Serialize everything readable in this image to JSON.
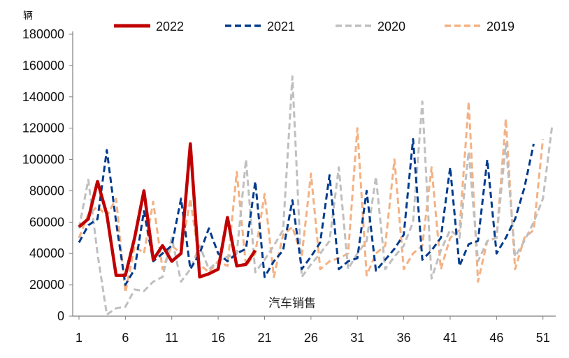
{
  "chart_data": {
    "type": "line",
    "title": "",
    "ylabel": "辆",
    "xlabel": "",
    "annotation": "汽车销售",
    "ylim": [
      0,
      180000
    ],
    "xlim": [
      1,
      52
    ],
    "yticks": [
      0,
      20000,
      40000,
      60000,
      80000,
      100000,
      120000,
      140000,
      160000,
      180000
    ],
    "xticks": [
      1,
      6,
      11,
      16,
      21,
      26,
      31,
      36,
      41,
      46,
      51
    ],
    "legend_position": "top",
    "series": [
      {
        "name": "2022",
        "color": "#c00000",
        "style": "solid",
        "x": [
          1,
          2,
          3,
          4,
          5,
          6,
          7,
          8,
          9,
          10,
          11,
          12,
          13,
          14,
          15,
          16,
          17,
          18,
          19,
          20
        ],
        "values": [
          57000,
          62000,
          86000,
          65000,
          26000,
          26000,
          50000,
          80000,
          36000,
          45000,
          35000,
          40000,
          110000,
          25000,
          27000,
          30000,
          63000,
          32000,
          33000,
          42000
        ]
      },
      {
        "name": "2021",
        "color": "#003b8e",
        "style": "dashed",
        "x": [
          1,
          2,
          3,
          4,
          5,
          6,
          7,
          8,
          9,
          10,
          11,
          12,
          13,
          14,
          15,
          16,
          17,
          18,
          19,
          20,
          21,
          22,
          23,
          24,
          25,
          26,
          27,
          28,
          29,
          30,
          31,
          32,
          33,
          34,
          35,
          36,
          37,
          38,
          39,
          40,
          41,
          42,
          43,
          44,
          45,
          46,
          47,
          48,
          49,
          50
        ],
        "values": [
          47000,
          58000,
          62000,
          106000,
          60000,
          20000,
          30000,
          67000,
          35000,
          40000,
          45000,
          75000,
          30000,
          40000,
          56000,
          40000,
          35000,
          40000,
          43000,
          86000,
          25000,
          35000,
          42000,
          74000,
          30000,
          38000,
          47000,
          90000,
          30000,
          35000,
          37000,
          80000,
          29000,
          36000,
          43000,
          52000,
          113000,
          36000,
          42000,
          50000,
          95000,
          32000,
          46000,
          48000,
          100000,
          40000,
          50000,
          62000,
          82000,
          110000
        ]
      },
      {
        "name": "2020",
        "color": "#bfbfbf",
        "style": "dashed",
        "x": [
          1,
          2,
          3,
          4,
          5,
          6,
          7,
          8,
          9,
          10,
          11,
          12,
          13,
          14,
          15,
          16,
          17,
          18,
          19,
          20,
          21,
          22,
          23,
          24,
          25,
          26,
          27,
          28,
          29,
          30,
          31,
          32,
          33,
          34,
          35,
          36,
          37,
          38,
          39,
          40,
          41,
          42,
          43,
          44,
          45,
          46,
          47,
          48,
          49,
          50,
          51,
          52
        ],
        "values": [
          56000,
          87000,
          40000,
          1000,
          5000,
          6000,
          17000,
          16000,
          22000,
          25000,
          50000,
          22000,
          30000,
          45000,
          30000,
          35000,
          38000,
          40000,
          100000,
          28000,
          36000,
          45000,
          55000,
          153000,
          25000,
          33000,
          40000,
          48000,
          95000,
          30000,
          40000,
          48000,
          89000,
          30000,
          38000,
          45000,
          60000,
          137000,
          24000,
          42000,
          55000,
          50000,
          105000,
          35000,
          48000,
          50000,
          110000,
          38000,
          48000,
          60000,
          75000,
          122000
        ]
      },
      {
        "name": "2019",
        "color": "#f4b183",
        "style": "dashed",
        "x": [
          1,
          2,
          3,
          4,
          5,
          6,
          7,
          8,
          9,
          10,
          11,
          12,
          13,
          14,
          15,
          16,
          17,
          18,
          19,
          20,
          21,
          22,
          23,
          24,
          25,
          26,
          27,
          28,
          29,
          30,
          31,
          32,
          33,
          34,
          35,
          36,
          37,
          38,
          39,
          40,
          41,
          42,
          43,
          44,
          45,
          46,
          47,
          48,
          49,
          50,
          51
        ],
        "values": [
          50000,
          65000,
          70000,
          64000,
          75000,
          15000,
          45000,
          40000,
          73000,
          30000,
          45000,
          40000,
          75000,
          33000,
          28000,
          35000,
          32000,
          92000,
          32000,
          40000,
          78000,
          25000,
          52000,
          57000,
          38000,
          91000,
          30000,
          35000,
          37000,
          40000,
          120000,
          26000,
          40000,
          45000,
          100000,
          30000,
          40000,
          45000,
          95000,
          30000,
          50000,
          55000,
          137000,
          22000,
          48000,
          50000,
          126000,
          30000,
          50000,
          55000,
          113000
        ]
      }
    ]
  }
}
